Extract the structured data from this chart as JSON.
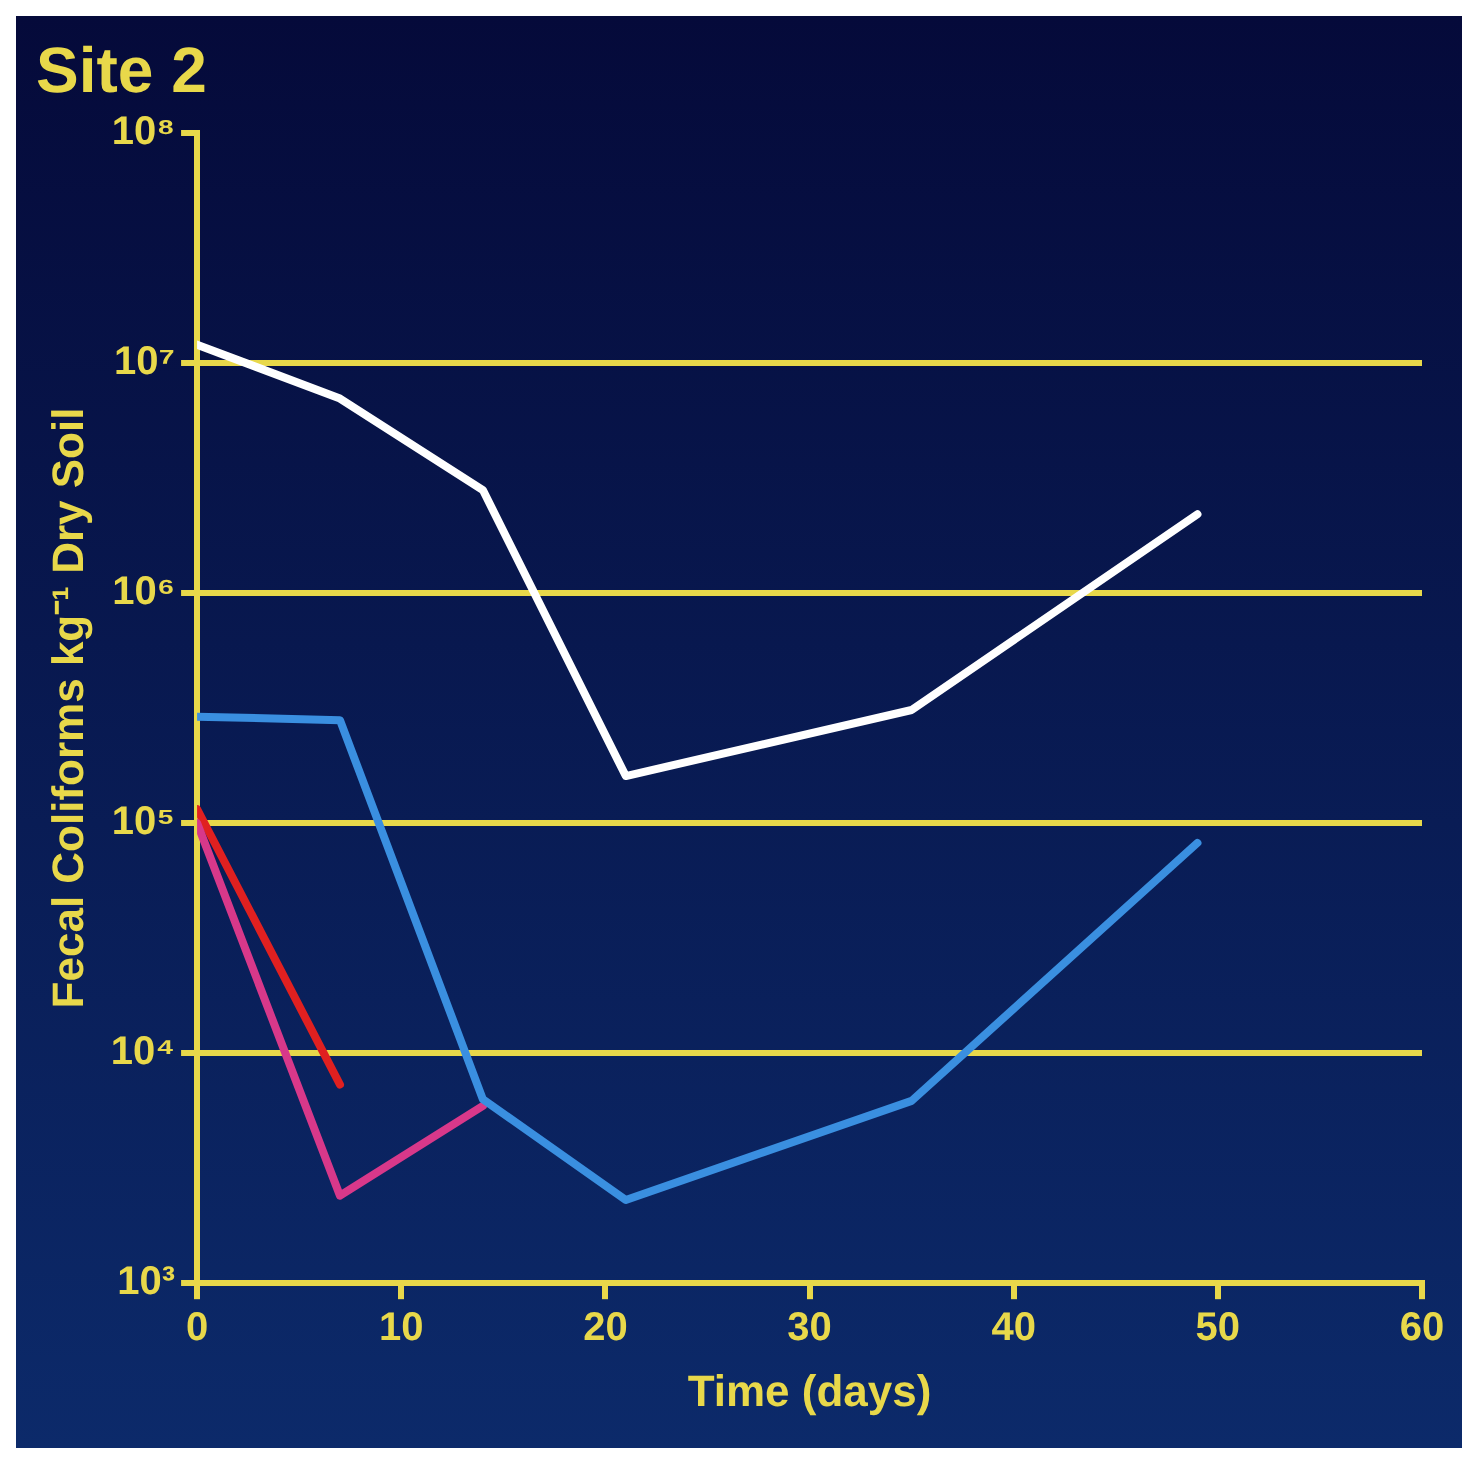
{
  "chart_data": {
    "type": "line",
    "title": "Site 2",
    "xlabel": "Time (days)",
    "ylabel": "Fecal Coliforms kg⁻¹ Dry Soil",
    "log": true,
    "grid": "y",
    "marker": "none",
    "line_style": "solid",
    "xlim": [
      0,
      60
    ],
    "xticks": [
      0,
      10,
      20,
      30,
      40,
      50,
      60
    ],
    "ylim": [
      1000,
      100000000
    ],
    "yticks": [
      {
        "value": 1000,
        "label": "10³"
      },
      {
        "value": 10000,
        "label": "10⁴"
      },
      {
        "value": 100000,
        "label": "10⁵"
      },
      {
        "value": 1000000,
        "label": "10⁶"
      },
      {
        "value": 10000000,
        "label": "10⁷"
      },
      {
        "value": 100000000,
        "label": "10⁸"
      }
    ],
    "series": [
      {
        "color": "#ffffff",
        "x": [
          0,
          7,
          14,
          21,
          35,
          49
        ],
        "values": [
          12000000,
          7000000,
          2800000,
          160000,
          310000,
          2200000
        ]
      },
      {
        "color": "#3a8fe0",
        "x": [
          0,
          7,
          14,
          21,
          35,
          49
        ],
        "values": [
          290000,
          280000,
          6300,
          2300,
          6200,
          82000
        ]
      },
      {
        "color": "#d8388a",
        "x": [
          0,
          7,
          14
        ],
        "values": [
          100000,
          2400,
          5900
        ]
      },
      {
        "color": "#e02020",
        "x": [
          0,
          7
        ],
        "values": [
          115000,
          7300
        ]
      }
    ]
  }
}
